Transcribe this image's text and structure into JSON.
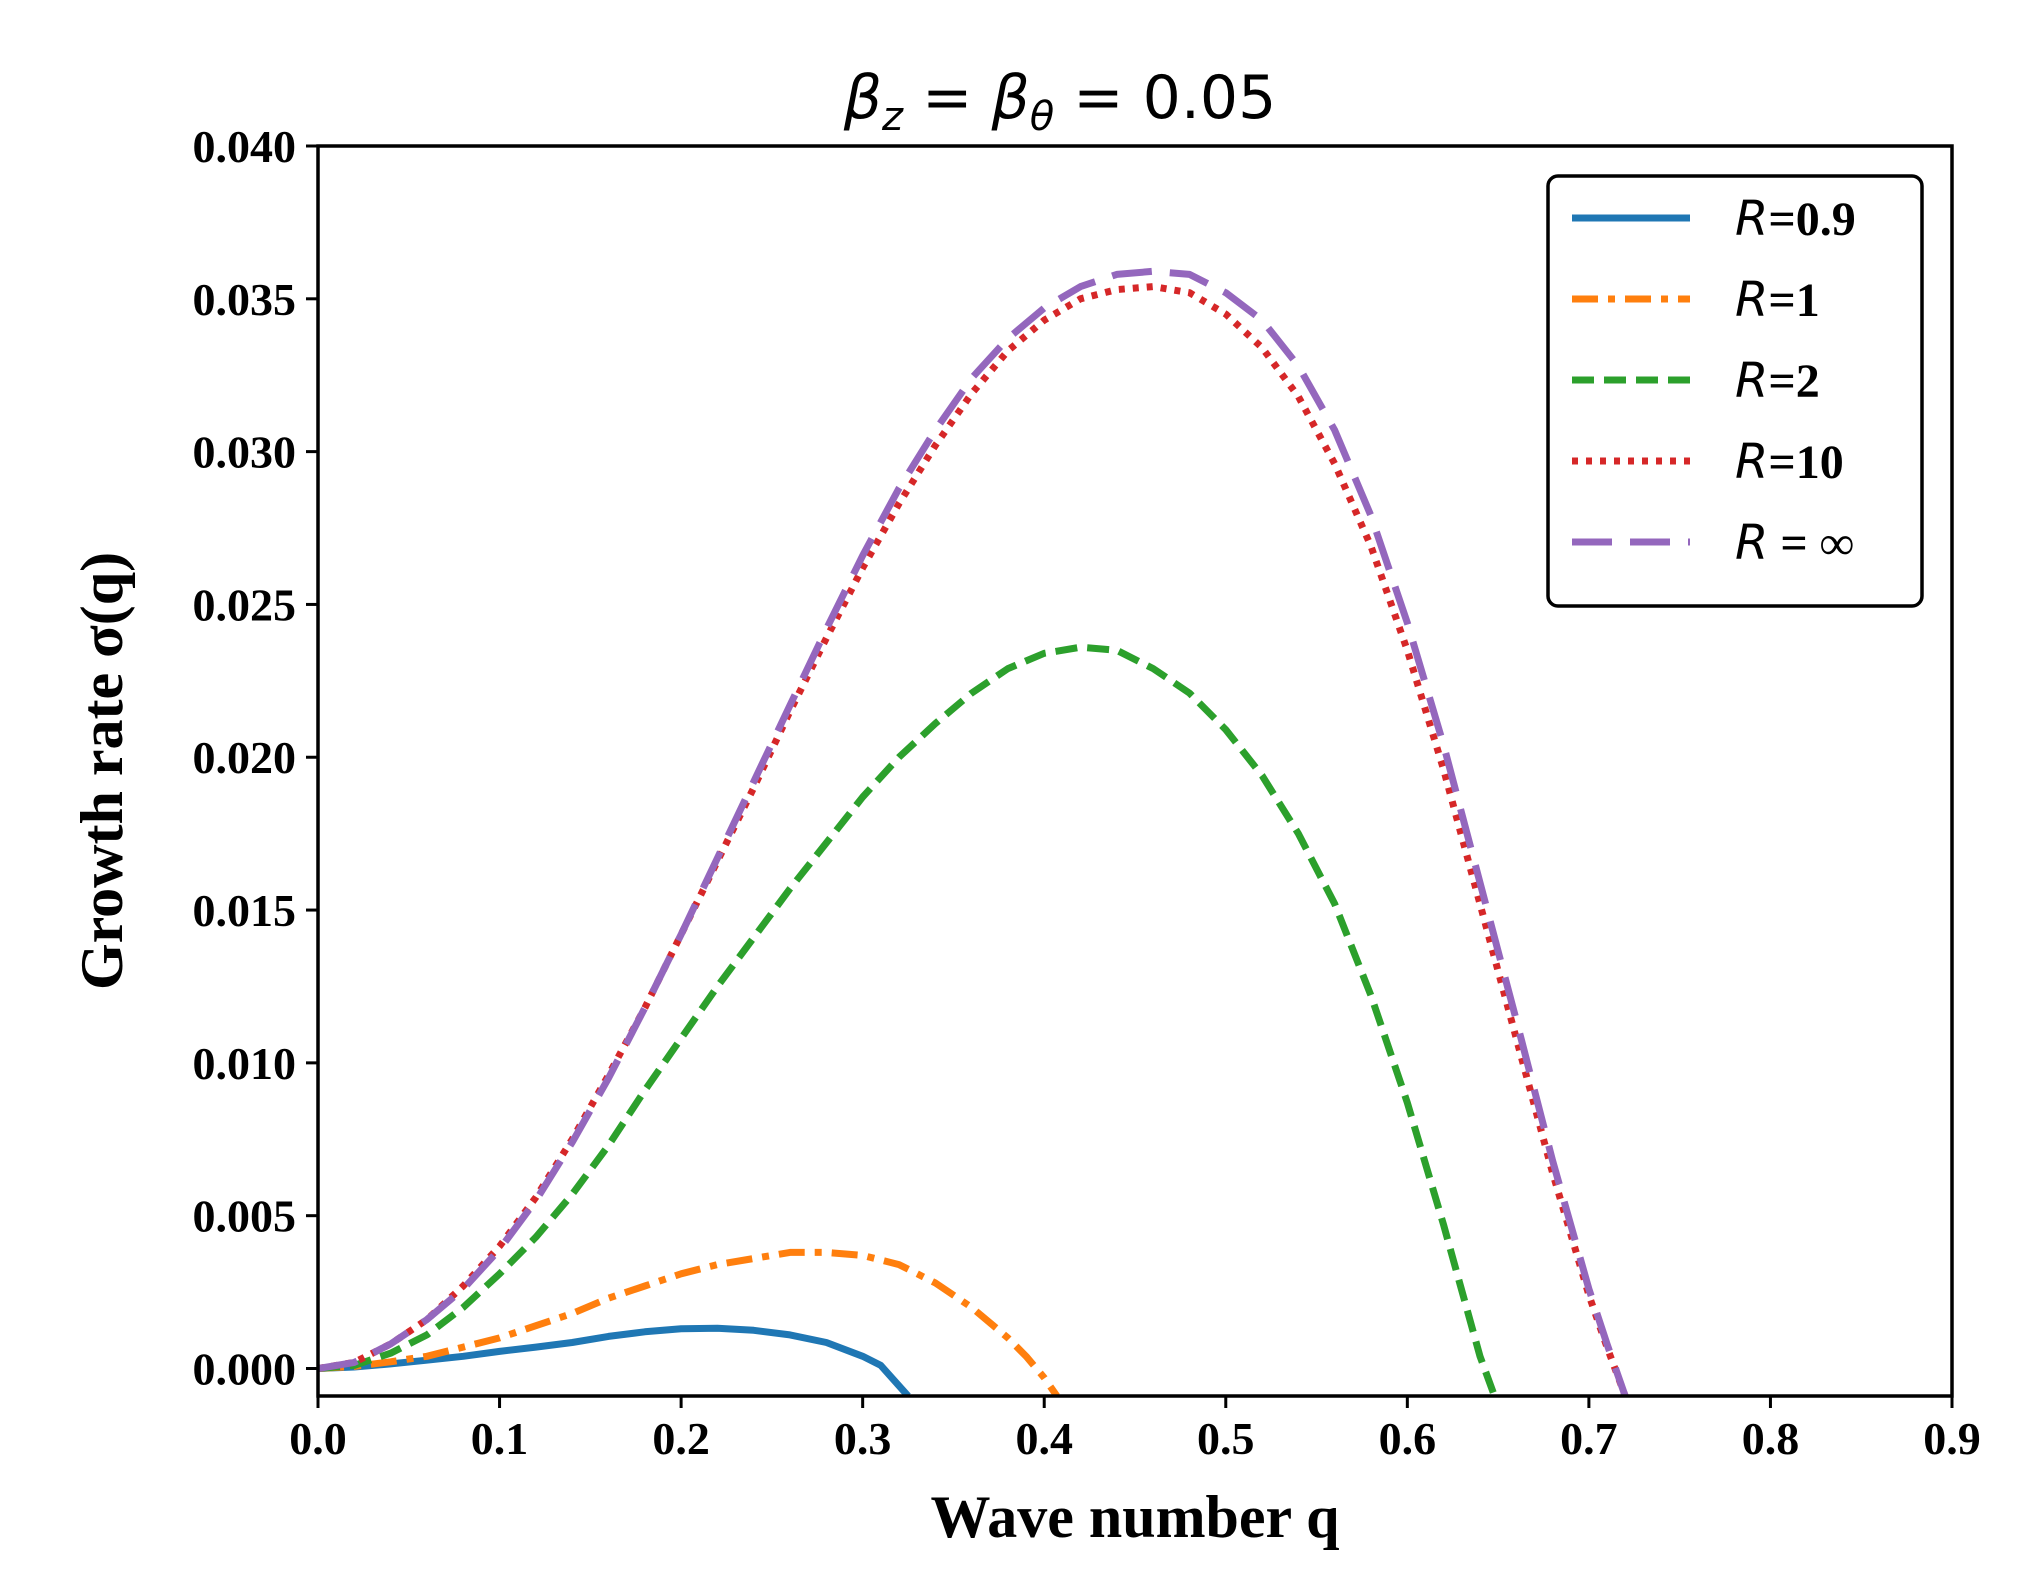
{
  "chart_data": {
    "type": "line",
    "title": "βz = βθ = 0.05",
    "title_parts": {
      "beta": "β",
      "sub_z": "z",
      "eq1": " = ",
      "sub_theta": "θ",
      "eq2": " = 0.05"
    },
    "xlabel": "Wave number q",
    "ylabel": "Growth rate σ(q)",
    "xlim": [
      0.0,
      0.9
    ],
    "ylim": [
      -0.0009,
      0.04
    ],
    "xticks": [
      0.0,
      0.1,
      0.2,
      0.3,
      0.4,
      0.5,
      0.6,
      0.7,
      0.8,
      0.9
    ],
    "xtick_labels": [
      "0.0",
      "0.1",
      "0.2",
      "0.3",
      "0.4",
      "0.5",
      "0.6",
      "0.7",
      "0.8",
      "0.9"
    ],
    "yticks": [
      0.0,
      0.005,
      0.01,
      0.015,
      0.02,
      0.025,
      0.03,
      0.035,
      0.04
    ],
    "ytick_labels": [
      "0.000",
      "0.005",
      "0.010",
      "0.015",
      "0.020",
      "0.025",
      "0.030",
      "0.035",
      "0.040"
    ],
    "grid": false,
    "legend_position": "top-right",
    "series": [
      {
        "name": "R=0.9",
        "legend_letter": "R",
        "legend_rest": "=0.9",
        "color": "#1f77b4",
        "style": "solid",
        "x": [
          0.0,
          0.02,
          0.04,
          0.06,
          0.08,
          0.1,
          0.12,
          0.14,
          0.16,
          0.18,
          0.2,
          0.22,
          0.24,
          0.26,
          0.28,
          0.3,
          0.31,
          0.325
        ],
        "y": [
          0.0,
          5e-05,
          0.00015,
          0.00027,
          0.0004,
          0.00056,
          0.0007,
          0.00085,
          0.00105,
          0.0012,
          0.0013,
          0.00132,
          0.00125,
          0.0011,
          0.00085,
          0.0004,
          0.0001,
          -0.0009
        ]
      },
      {
        "name": "R=1",
        "legend_letter": "R",
        "legend_rest": "=1",
        "color": "#ff7f0e",
        "style": "dashdot",
        "x": [
          0.0,
          0.02,
          0.04,
          0.06,
          0.08,
          0.1,
          0.12,
          0.14,
          0.16,
          0.18,
          0.2,
          0.22,
          0.24,
          0.26,
          0.28,
          0.3,
          0.32,
          0.34,
          0.36,
          0.38,
          0.39,
          0.4,
          0.407
        ],
        "y": [
          0.0,
          7e-05,
          0.00022,
          0.0004,
          0.0007,
          0.001,
          0.0014,
          0.0018,
          0.0023,
          0.0027,
          0.0031,
          0.0034,
          0.0036,
          0.0038,
          0.0038,
          0.0037,
          0.0034,
          0.0028,
          0.002,
          0.001,
          0.0004,
          -0.0003,
          -0.0009
        ]
      },
      {
        "name": "R=2",
        "legend_letter": "R",
        "legend_rest": "=2",
        "color": "#2ca02c",
        "style": "dashed",
        "x": [
          0.0,
          0.02,
          0.04,
          0.06,
          0.08,
          0.1,
          0.12,
          0.14,
          0.16,
          0.18,
          0.2,
          0.22,
          0.24,
          0.26,
          0.28,
          0.3,
          0.32,
          0.34,
          0.36,
          0.38,
          0.4,
          0.42,
          0.44,
          0.46,
          0.48,
          0.5,
          0.52,
          0.54,
          0.56,
          0.58,
          0.6,
          0.62,
          0.64,
          0.648
        ],
        "y": [
          0.0,
          0.0001,
          0.0005,
          0.0011,
          0.002,
          0.0031,
          0.0043,
          0.0057,
          0.0073,
          0.0091,
          0.0108,
          0.0125,
          0.0141,
          0.0157,
          0.0172,
          0.0187,
          0.02,
          0.0211,
          0.0221,
          0.0229,
          0.0234,
          0.0236,
          0.0235,
          0.0229,
          0.0221,
          0.0209,
          0.0194,
          0.0175,
          0.0152,
          0.0122,
          0.0087,
          0.0047,
          0.0004,
          -0.0009
        ]
      },
      {
        "name": "R=10",
        "legend_letter": "R",
        "legend_rest": "=10",
        "color": "#d62728",
        "style": "dotted",
        "x": [
          0.0,
          0.02,
          0.04,
          0.06,
          0.08,
          0.1,
          0.12,
          0.14,
          0.16,
          0.18,
          0.2,
          0.22,
          0.24,
          0.26,
          0.28,
          0.3,
          0.32,
          0.34,
          0.36,
          0.38,
          0.4,
          0.42,
          0.44,
          0.46,
          0.48,
          0.5,
          0.52,
          0.54,
          0.56,
          0.58,
          0.6,
          0.62,
          0.64,
          0.66,
          0.68,
          0.7,
          0.71,
          0.72
        ],
        "y": [
          0.0,
          0.0002,
          0.0008,
          0.0016,
          0.0027,
          0.004,
          0.0056,
          0.0075,
          0.0096,
          0.0118,
          0.0142,
          0.0166,
          0.019,
          0.0215,
          0.0239,
          0.0262,
          0.0283,
          0.0302,
          0.0319,
          0.0333,
          0.0343,
          0.035,
          0.0353,
          0.0354,
          0.0352,
          0.0345,
          0.0334,
          0.0318,
          0.0296,
          0.0269,
          0.0235,
          0.0196,
          0.0152,
          0.0108,
          0.0064,
          0.0024,
          0.0007,
          -0.0009
        ]
      },
      {
        "name": "R = ∞",
        "legend_letter": "R",
        "legend_rest": " = ∞",
        "color": "#9467bd",
        "style": "longdash",
        "x": [
          0.0,
          0.02,
          0.04,
          0.06,
          0.08,
          0.1,
          0.12,
          0.14,
          0.16,
          0.18,
          0.2,
          0.22,
          0.24,
          0.26,
          0.28,
          0.3,
          0.32,
          0.34,
          0.36,
          0.38,
          0.4,
          0.42,
          0.44,
          0.46,
          0.48,
          0.5,
          0.52,
          0.54,
          0.56,
          0.58,
          0.6,
          0.62,
          0.64,
          0.66,
          0.68,
          0.7,
          0.71,
          0.72
        ],
        "y": [
          0.0,
          0.0002,
          0.0008,
          0.0016,
          0.0026,
          0.0039,
          0.0055,
          0.0074,
          0.0095,
          0.0118,
          0.0142,
          0.0167,
          0.0192,
          0.0217,
          0.0242,
          0.0266,
          0.0288,
          0.0307,
          0.0324,
          0.0337,
          0.0347,
          0.0354,
          0.0358,
          0.0359,
          0.0358,
          0.0352,
          0.0343,
          0.0328,
          0.0307,
          0.0279,
          0.0244,
          0.0204,
          0.0159,
          0.0114,
          0.0068,
          0.0026,
          0.0008,
          -0.0009
        ]
      }
    ]
  }
}
